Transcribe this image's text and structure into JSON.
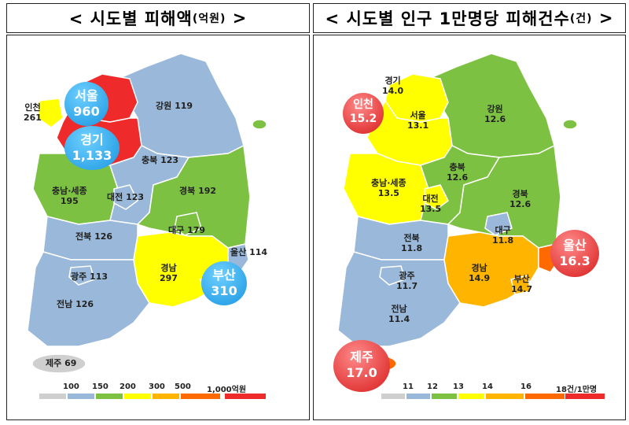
{
  "left": {
    "title": "< 시도별 피해액",
    "title_unit": "(억원)",
    "title_end": " >",
    "regions": {
      "incheon": {
        "name": "인천",
        "value": "261"
      },
      "seoul": {
        "name": "서울",
        "value": "960"
      },
      "gyeonggi": {
        "name": "경기",
        "value": "1,133"
      },
      "gangwon": {
        "name": "강원",
        "value": "119"
      },
      "chungbuk": {
        "name": "충북",
        "value": "123"
      },
      "chungnam": {
        "name": "충남·세종",
        "value": "195"
      },
      "daejeon": {
        "name": "대전",
        "value": "123"
      },
      "gyeongbuk": {
        "name": "경북",
        "value": "192"
      },
      "daegu": {
        "name": "대구",
        "value": "179"
      },
      "jeonbuk": {
        "name": "전북",
        "value": "126"
      },
      "ulsan": {
        "name": "울산",
        "value": "114"
      },
      "gwangju": {
        "name": "광주",
        "value": "113"
      },
      "gyeongnam": {
        "name": "경남",
        "value": "297"
      },
      "busan": {
        "name": "부산",
        "value": "310"
      },
      "jeonnam": {
        "name": "전남",
        "value": "126"
      },
      "jeju": {
        "name": "제주",
        "value": "69"
      }
    },
    "legend": [
      "100",
      "150",
      "200",
      "300",
      "500",
      "1,000억원"
    ]
  },
  "right": {
    "title": "< 시도별 인구 1만명당 피해건수",
    "title_unit": "(건)",
    "title_end": " >",
    "regions": {
      "gyeonggi": {
        "name": "경기",
        "value": "14.0"
      },
      "incheon": {
        "name": "인천",
        "value": "15.2"
      },
      "seoul": {
        "name": "서울",
        "value": "13.1"
      },
      "gangwon": {
        "name": "강원",
        "value": "12.6"
      },
      "chungbuk": {
        "name": "충북",
        "value": "12.6"
      },
      "chungnam": {
        "name": "충남·세종",
        "value": "13.5"
      },
      "daejeon": {
        "name": "대전",
        "value": "13.5"
      },
      "gyeongbuk": {
        "name": "경북",
        "value": "12.6"
      },
      "daegu": {
        "name": "대구",
        "value": "11.8"
      },
      "jeonbuk": {
        "name": "전북",
        "value": "11.8"
      },
      "ulsan": {
        "name": "울산",
        "value": "16.3"
      },
      "gwangju": {
        "name": "광주",
        "value": "11.7"
      },
      "gyeongnam": {
        "name": "경남",
        "value": "14.9"
      },
      "busan": {
        "name": "부산",
        "value": "14.7"
      },
      "jeonnam": {
        "name": "전남",
        "value": "11.4"
      },
      "jeju": {
        "name": "제주",
        "value": "17.0"
      }
    },
    "legend": [
      "11",
      "12",
      "13",
      "14",
      "16",
      "18건/1만명"
    ]
  },
  "colors": {
    "scale": [
      "#cfcfcf",
      "#9ab8d9",
      "#7dc142",
      "#ffff00",
      "#ffb400",
      "#ff6a00",
      "#ee2a2a"
    ],
    "bubble_blue": "#1aa3e8",
    "bubble_red": "#e82a2a"
  },
  "fills": {
    "left": {
      "gangwon": 1,
      "seoul": 6,
      "gyeonggi": 6,
      "incheon": 3,
      "chungnam": 2,
      "chungbuk": 1,
      "daejeon": 1,
      "gyeongbuk": 2,
      "daegu": 2,
      "ulsan": 1,
      "gyeongnam": 3,
      "busan": 4,
      "jeonbuk": 1,
      "jeonnam": 1,
      "gwangju": 1,
      "jeju": 0,
      "ulleung": 2
    },
    "right": {
      "gangwon": 2,
      "seoul": 3,
      "gyeonggi": 3,
      "incheon": 5,
      "chungnam": 3,
      "chungbuk": 2,
      "daejeon": 3,
      "gyeongbuk": 2,
      "daegu": 1,
      "ulsan": 5,
      "gyeongnam": 4,
      "busan": 4,
      "jeonbuk": 1,
      "jeonnam": 1,
      "gwangju": 1,
      "jeju": 5,
      "ulleung": 2
    }
  }
}
